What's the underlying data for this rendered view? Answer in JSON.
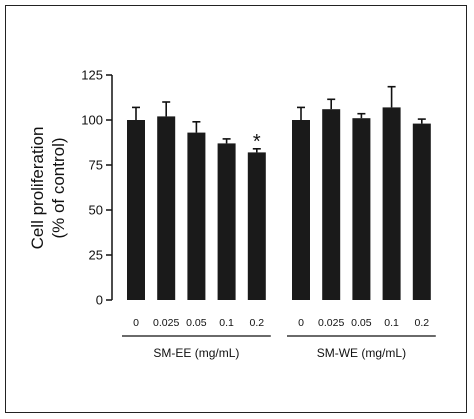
{
  "chart_data": {
    "type": "bar",
    "ylabel_lines": [
      "Cell proliferation",
      "(% of control)"
    ],
    "ylim": [
      0,
      125
    ],
    "yticks": [
      0,
      25,
      50,
      75,
      100,
      125
    ],
    "bar_color": "#1a1a1a",
    "groups": [
      {
        "name": "SM-EE (mg/mL)",
        "categories": [
          "0",
          "0.025",
          "0.05",
          "0.1",
          "0.2"
        ],
        "values": [
          100,
          102,
          93,
          87,
          82
        ],
        "errors": [
          7,
          8,
          6,
          2.5,
          2
        ],
        "annotations": [
          "",
          "",
          "",
          "",
          "*"
        ]
      },
      {
        "name": "SM-WE (mg/mL)",
        "categories": [
          "0",
          "0.025",
          "0.05",
          "0.1",
          "0.2"
        ],
        "values": [
          100,
          106,
          101,
          107,
          98
        ],
        "errors": [
          7,
          5.5,
          2.5,
          11.5,
          2.5
        ],
        "annotations": [
          "",
          "",
          "",
          "",
          ""
        ]
      }
    ]
  }
}
